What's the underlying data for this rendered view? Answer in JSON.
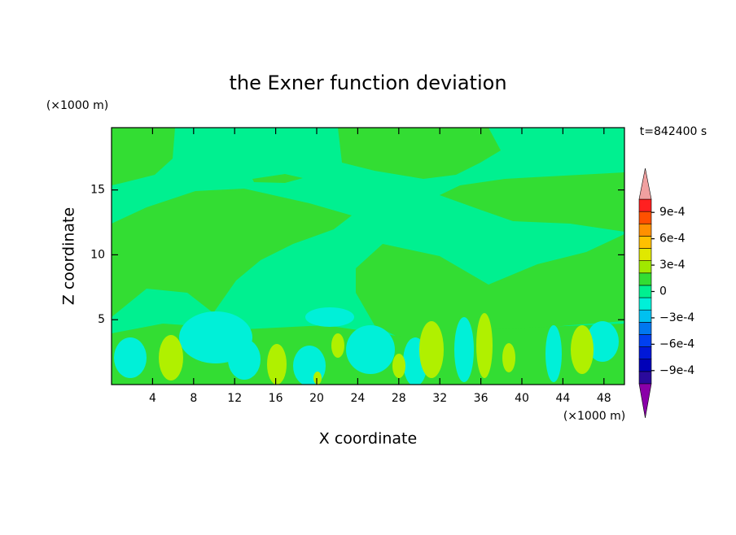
{
  "chart_data": {
    "type": "contour",
    "title": "the Exner function deviation",
    "xlabel": "X coordinate",
    "ylabel": "Z coordinate",
    "x_unit_label": "(×1000 m)",
    "y_unit_label": "(×1000 m)",
    "annotation": "t=842400 s",
    "xlim": [
      0,
      50
    ],
    "ylim": [
      0,
      19.8
    ],
    "xticks": [
      4,
      8,
      12,
      16,
      20,
      24,
      28,
      32,
      36,
      40,
      44,
      48
    ],
    "yticks": [
      5,
      10,
      15
    ],
    "colorbar": {
      "clim": [
        -0.00105,
        0.00105
      ],
      "ticks": [
        {
          "value": 0.0009,
          "label": "9e-4"
        },
        {
          "value": 0.0006,
          "label": "6e-4"
        },
        {
          "value": 0.0003,
          "label": "3e-4"
        },
        {
          "value": 0,
          "label": "0"
        },
        {
          "value": -0.0003,
          "label": "−3e-4"
        },
        {
          "value": -0.0006,
          "label": "−6e-4"
        },
        {
          "value": -0.0009,
          "label": "−9e-4"
        }
      ],
      "colors": [
        "#2a0a9c",
        "#0000b8",
        "#0018d8",
        "#0040f0",
        "#0078f0",
        "#00c0f0",
        "#00f0d8",
        "#00f090",
        "#33dd33",
        "#a0e800",
        "#e0e800",
        "#ffc000",
        "#ff9000",
        "#ff5000",
        "#ff2020"
      ],
      "over_color": "#f0a0a0",
      "under_color": "#8a00a8"
    }
  }
}
